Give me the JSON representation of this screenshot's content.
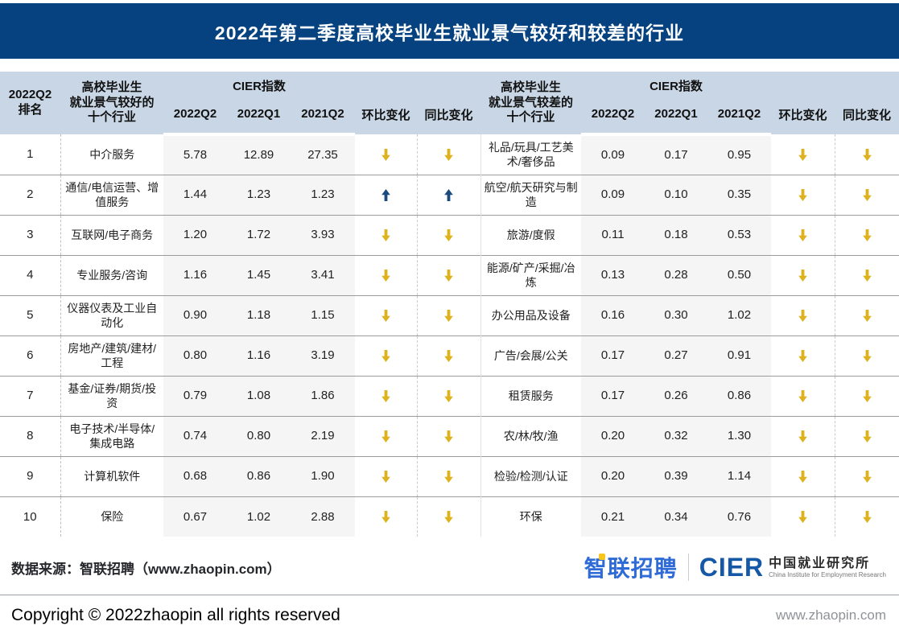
{
  "title": "2022年第二季度高校毕业生就业景气较好和较差的行业",
  "colors": {
    "title_bar": "#05427f",
    "header_bg": "#c8d6e5",
    "up_arrow": "#1b4a7e",
    "down_arrow": "#ddb21d",
    "value_col_bg": "#f5f5f6"
  },
  "chart_data": {
    "type": "table",
    "title": "2022年第二季度高校毕业生就业景气较好和较差的行业",
    "headers": {
      "rank": "2022Q2\n排名",
      "better_group": "高校毕业生\n就业景气较好的\n十个行业",
      "worse_group": "高校毕业生\n就业景气较差的\n十个行业",
      "cier_group": "CIER指数",
      "period_cols": [
        "2022Q2",
        "2022Q1",
        "2021Q2"
      ],
      "mom": "环比变化",
      "yoy": "同比变化"
    },
    "rows": [
      {
        "rank": 1,
        "better": {
          "industry": "中介服务",
          "cier_2022q2": "5.78",
          "cier_2022q1": "12.89",
          "cier_2021q2": "27.35",
          "mom": "down",
          "yoy": "down"
        },
        "worse": {
          "industry": "礼品/玩具/工艺美术/奢侈品",
          "cier_2022q2": "0.09",
          "cier_2022q1": "0.17",
          "cier_2021q2": "0.95",
          "mom": "down",
          "yoy": "down"
        }
      },
      {
        "rank": 2,
        "better": {
          "industry": "通信/电信运营、增值服务",
          "cier_2022q2": "1.44",
          "cier_2022q1": "1.23",
          "cier_2021q2": "1.23",
          "mom": "up",
          "yoy": "up"
        },
        "worse": {
          "industry": "航空/航天研究与制造",
          "cier_2022q2": "0.09",
          "cier_2022q1": "0.10",
          "cier_2021q2": "0.35",
          "mom": "down",
          "yoy": "down"
        }
      },
      {
        "rank": 3,
        "better": {
          "industry": "互联网/电子商务",
          "cier_2022q2": "1.20",
          "cier_2022q1": "1.72",
          "cier_2021q2": "3.93",
          "mom": "down",
          "yoy": "down"
        },
        "worse": {
          "industry": "旅游/度假",
          "cier_2022q2": "0.11",
          "cier_2022q1": "0.18",
          "cier_2021q2": "0.53",
          "mom": "down",
          "yoy": "down"
        }
      },
      {
        "rank": 4,
        "better": {
          "industry": "专业服务/咨询",
          "cier_2022q2": "1.16",
          "cier_2022q1": "1.45",
          "cier_2021q2": "3.41",
          "mom": "down",
          "yoy": "down"
        },
        "worse": {
          "industry": "能源/矿产/采掘/冶炼",
          "cier_2022q2": "0.13",
          "cier_2022q1": "0.28",
          "cier_2021q2": "0.50",
          "mom": "down",
          "yoy": "down"
        }
      },
      {
        "rank": 5,
        "better": {
          "industry": "仪器仪表及工业自动化",
          "cier_2022q2": "0.90",
          "cier_2022q1": "1.18",
          "cier_2021q2": "1.15",
          "mom": "down",
          "yoy": "down"
        },
        "worse": {
          "industry": "办公用品及设备",
          "cier_2022q2": "0.16",
          "cier_2022q1": "0.30",
          "cier_2021q2": "1.02",
          "mom": "down",
          "yoy": "down"
        }
      },
      {
        "rank": 6,
        "better": {
          "industry": "房地产/建筑/建材/工程",
          "cier_2022q2": "0.80",
          "cier_2022q1": "1.16",
          "cier_2021q2": "3.19",
          "mom": "down",
          "yoy": "down"
        },
        "worse": {
          "industry": "广告/会展/公关",
          "cier_2022q2": "0.17",
          "cier_2022q1": "0.27",
          "cier_2021q2": "0.91",
          "mom": "down",
          "yoy": "down"
        }
      },
      {
        "rank": 7,
        "better": {
          "industry": "基金/证券/期货/投资",
          "cier_2022q2": "0.79",
          "cier_2022q1": "1.08",
          "cier_2021q2": "1.86",
          "mom": "down",
          "yoy": "down"
        },
        "worse": {
          "industry": "租赁服务",
          "cier_2022q2": "0.17",
          "cier_2022q1": "0.26",
          "cier_2021q2": "0.86",
          "mom": "down",
          "yoy": "down"
        }
      },
      {
        "rank": 8,
        "better": {
          "industry": "电子技术/半导体/集成电路",
          "cier_2022q2": "0.74",
          "cier_2022q1": "0.80",
          "cier_2021q2": "2.19",
          "mom": "down",
          "yoy": "down"
        },
        "worse": {
          "industry": "农/林/牧/渔",
          "cier_2022q2": "0.20",
          "cier_2022q1": "0.32",
          "cier_2021q2": "1.30",
          "mom": "down",
          "yoy": "down"
        }
      },
      {
        "rank": 9,
        "better": {
          "industry": "计算机软件",
          "cier_2022q2": "0.68",
          "cier_2022q1": "0.86",
          "cier_2021q2": "1.90",
          "mom": "down",
          "yoy": "down"
        },
        "worse": {
          "industry": "检验/检测/认证",
          "cier_2022q2": "0.20",
          "cier_2022q1": "0.39",
          "cier_2021q2": "1.14",
          "mom": "down",
          "yoy": "down"
        }
      },
      {
        "rank": 10,
        "better": {
          "industry": "保险",
          "cier_2022q2": "0.67",
          "cier_2022q1": "1.02",
          "cier_2021q2": "2.88",
          "mom": "down",
          "yoy": "down"
        },
        "worse": {
          "industry": "环保",
          "cier_2022q2": "0.21",
          "cier_2022q1": "0.34",
          "cier_2021q2": "0.76",
          "mom": "down",
          "yoy": "down"
        }
      }
    ]
  },
  "footer": {
    "source": "数据来源：智联招聘（www.zhaopin.com）",
    "logo_zhaopin": "智联招聘",
    "logo_cier": "CIER",
    "logo_cier_cn": "中国就业研究所",
    "logo_cier_en": "China Institute for Employment Research",
    "copyright": "Copyright ©  2022zhaopin all rights reserved",
    "site": "www.zhaopin.com"
  }
}
